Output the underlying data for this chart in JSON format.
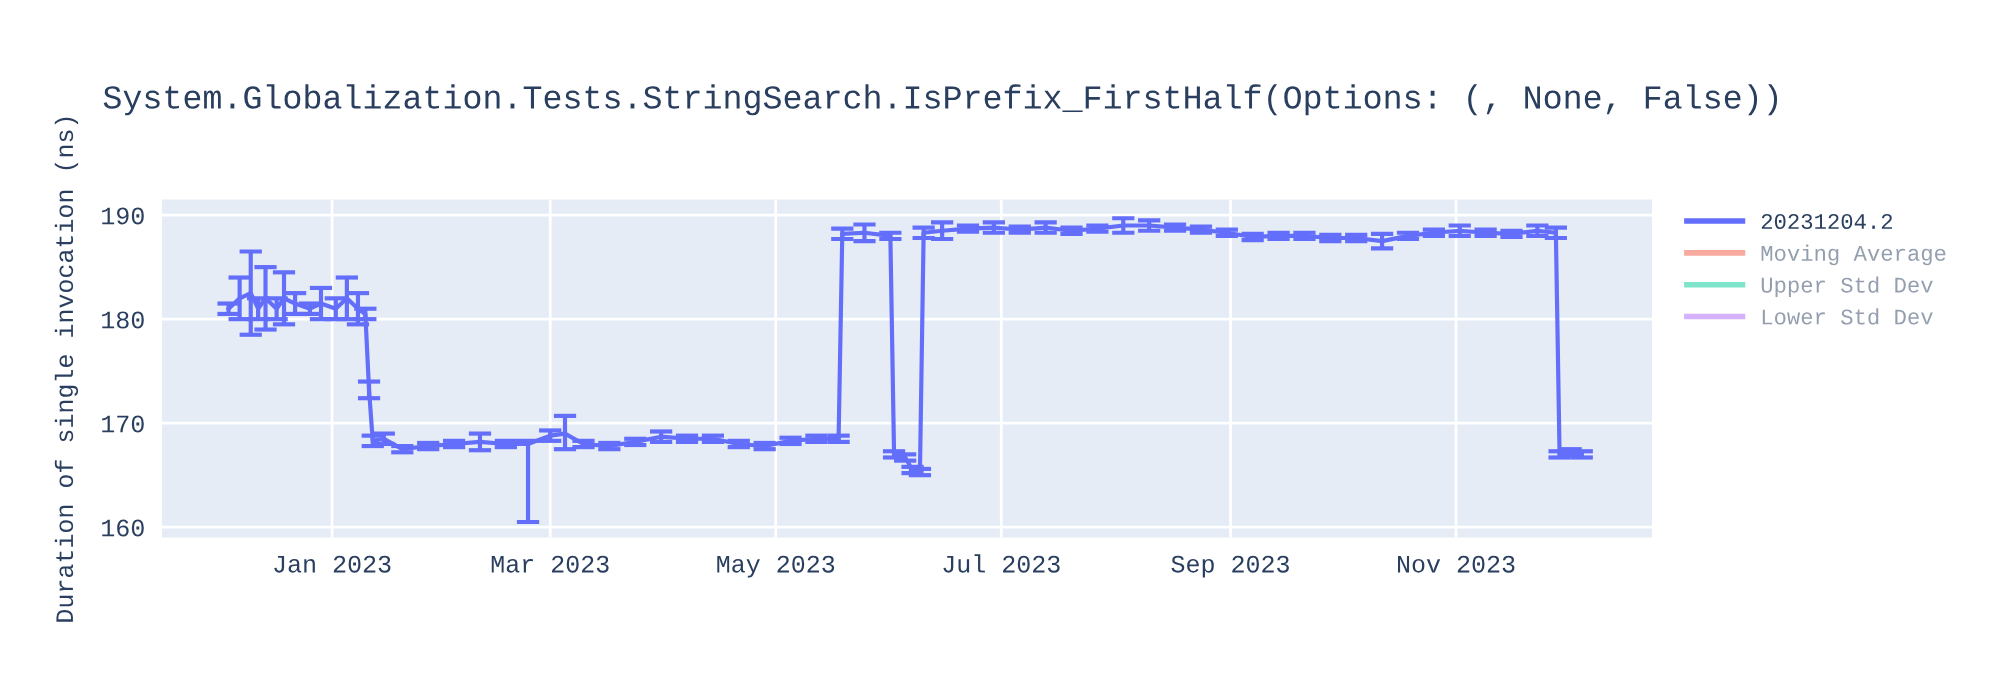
{
  "chart_data": {
    "type": "line",
    "title": "System.Globalization.Tests.StringSearch.IsPrefix_FirstHalf(Options: (, None, False))",
    "ylabel": "Duration of single invocation (ns)",
    "x": [
      "2022-12-04",
      "2022-12-07",
      "2022-12-10",
      "2022-12-12",
      "2022-12-14",
      "2022-12-17",
      "2022-12-19",
      "2022-12-22",
      "2022-12-26",
      "2022-12-29",
      "2023-01-02",
      "2023-01-05",
      "2023-01-08",
      "2023-01-10",
      "2023-01-11",
      "2023-01-12",
      "2023-01-15",
      "2023-01-20",
      "2023-01-27",
      "2023-02-03",
      "2023-02-10",
      "2023-02-17",
      "2023-02-23",
      "2023-03-01",
      "2023-03-05",
      "2023-03-10",
      "2023-03-17",
      "2023-03-24",
      "2023-03-31",
      "2023-04-07",
      "2023-04-14",
      "2023-04-21",
      "2023-04-28",
      "2023-05-05",
      "2023-05-12",
      "2023-05-18",
      "2023-05-19",
      "2023-05-25",
      "2023-06-01",
      "2023-06-02",
      "2023-06-05",
      "2023-06-07",
      "2023-06-09",
      "2023-06-10",
      "2023-06-15",
      "2023-06-22",
      "2023-06-29",
      "2023-07-06",
      "2023-07-13",
      "2023-07-20",
      "2023-07-27",
      "2023-08-03",
      "2023-08-10",
      "2023-08-17",
      "2023-08-24",
      "2023-08-31",
      "2023-09-07",
      "2023-09-14",
      "2023-09-21",
      "2023-09-28",
      "2023-10-05",
      "2023-10-12",
      "2023-10-19",
      "2023-10-26",
      "2023-11-02",
      "2023-11-09",
      "2023-11-16",
      "2023-11-23",
      "2023-11-28",
      "2023-11-29",
      "2023-12-02",
      "2023-12-05"
    ],
    "series": [
      {
        "name": "20231204.2",
        "color": "#636efa",
        "values": [
          181.0,
          182.0,
          182.5,
          181.0,
          182.0,
          181.0,
          182.0,
          181.5,
          181.0,
          181.5,
          181.0,
          182.0,
          181.0,
          180.5,
          173.2,
          168.3,
          168.5,
          167.5,
          167.8,
          168.0,
          168.2,
          168.0,
          168.0,
          168.8,
          169.0,
          168.0,
          167.8,
          168.2,
          168.7,
          168.5,
          168.5,
          168.0,
          167.8,
          168.3,
          168.5,
          168.5,
          188.2,
          188.3,
          188.0,
          167.0,
          166.7,
          165.5,
          165.3,
          188.3,
          188.5,
          188.7,
          188.8,
          188.6,
          188.8,
          188.5,
          188.7,
          189.0,
          189.0,
          188.8,
          188.6,
          188.3,
          187.9,
          188.0,
          188.0,
          187.8,
          187.8,
          187.5,
          188.0,
          188.3,
          188.5,
          188.3,
          188.2,
          188.5,
          188.3,
          167.0,
          167.2,
          167.0
        ],
        "errors": [
          0.5,
          2.0,
          4.0,
          1.0,
          3.0,
          1.0,
          2.5,
          1.0,
          0.5,
          1.5,
          1.0,
          2.0,
          1.5,
          0.5,
          0.8,
          0.5,
          0.5,
          0.3,
          0.3,
          0.3,
          0.8,
          0.3,
          [
            160.5,
            168.3
          ],
          0.5,
          [
            167.5,
            170.7
          ],
          0.3,
          0.3,
          0.3,
          0.5,
          0.3,
          0.3,
          0.3,
          0.3,
          0.3,
          0.3,
          0.3,
          0.5,
          0.8,
          0.3,
          0.3,
          0.3,
          0.3,
          0.3,
          0.5,
          0.8,
          0.3,
          0.5,
          0.3,
          0.5,
          0.3,
          0.3,
          0.7,
          0.5,
          0.3,
          0.3,
          0.3,
          0.3,
          0.3,
          0.3,
          0.3,
          0.3,
          0.7,
          0.3,
          0.3,
          0.5,
          0.3,
          0.3,
          0.5,
          0.5,
          0.3,
          0.3,
          0.3
        ]
      },
      {
        "name": "Moving Average",
        "color": "#ef553b",
        "values": [
          null,
          null,
          null,
          null,
          null,
          null,
          null,
          null,
          null,
          null,
          null,
          null,
          null,
          null,
          null,
          null,
          null,
          null,
          null,
          null,
          null,
          null,
          null,
          null,
          null,
          null,
          null,
          null,
          null,
          null,
          null,
          null,
          null,
          null,
          null,
          null,
          null,
          null,
          null,
          null,
          null,
          null,
          null,
          null,
          null,
          null,
          null,
          null,
          null,
          null,
          null,
          null,
          null,
          null,
          null,
          null,
          null,
          null,
          null,
          null,
          null,
          null,
          null,
          null,
          null,
          null,
          null,
          null,
          null,
          null,
          null,
          null
        ]
      },
      {
        "name": "Upper Std Dev",
        "color": "#00cc96",
        "values": [
          null,
          null,
          null,
          null,
          null,
          null,
          null,
          null,
          null,
          null,
          null,
          null,
          null,
          null,
          null,
          null,
          null,
          null,
          null,
          null,
          null,
          null,
          null,
          null,
          null,
          null,
          null,
          null,
          null,
          null,
          null,
          null,
          null,
          null,
          null,
          null,
          null,
          null,
          null,
          null,
          null,
          null,
          null,
          null,
          null,
          null,
          null,
          null,
          null,
          null,
          null,
          null,
          null,
          null,
          null,
          null,
          null,
          null,
          null,
          null,
          null,
          null,
          null,
          null,
          null,
          null,
          null,
          null,
          null,
          null,
          null,
          null
        ]
      },
      {
        "name": "Lower Std Dev",
        "color": "#ab63fa",
        "values": [
          null,
          null,
          null,
          null,
          null,
          null,
          null,
          null,
          null,
          null,
          null,
          null,
          null,
          null,
          null,
          null,
          null,
          null,
          null,
          null,
          null,
          null,
          null,
          null,
          null,
          null,
          null,
          null,
          null,
          null,
          null,
          null,
          null,
          null,
          null,
          null,
          null,
          null,
          null,
          null,
          null,
          null,
          null,
          null,
          null,
          null,
          null,
          null,
          null,
          null,
          null,
          null,
          null,
          null,
          null,
          null,
          null,
          null,
          null,
          null,
          null,
          null,
          null,
          null,
          null,
          null,
          null,
          null,
          null,
          null,
          null,
          null
        ]
      }
    ],
    "xlim": [
      "2022-11-16",
      "2023-12-24"
    ],
    "xticks": [
      {
        "value": "2023-01-01",
        "label": "Jan 2023"
      },
      {
        "value": "2023-03-01",
        "label": "Mar 2023"
      },
      {
        "value": "2023-05-01",
        "label": "May 2023"
      },
      {
        "value": "2023-07-01",
        "label": "Jul 2023"
      },
      {
        "value": "2023-09-01",
        "label": "Sep 2023"
      },
      {
        "value": "2023-11-01",
        "label": "Nov 2023"
      }
    ],
    "ylim": [
      159,
      191.5
    ],
    "yticks": [
      160,
      170,
      180,
      190
    ],
    "grid": true,
    "legend": "top right",
    "line_style": "solid",
    "marker": "none"
  }
}
